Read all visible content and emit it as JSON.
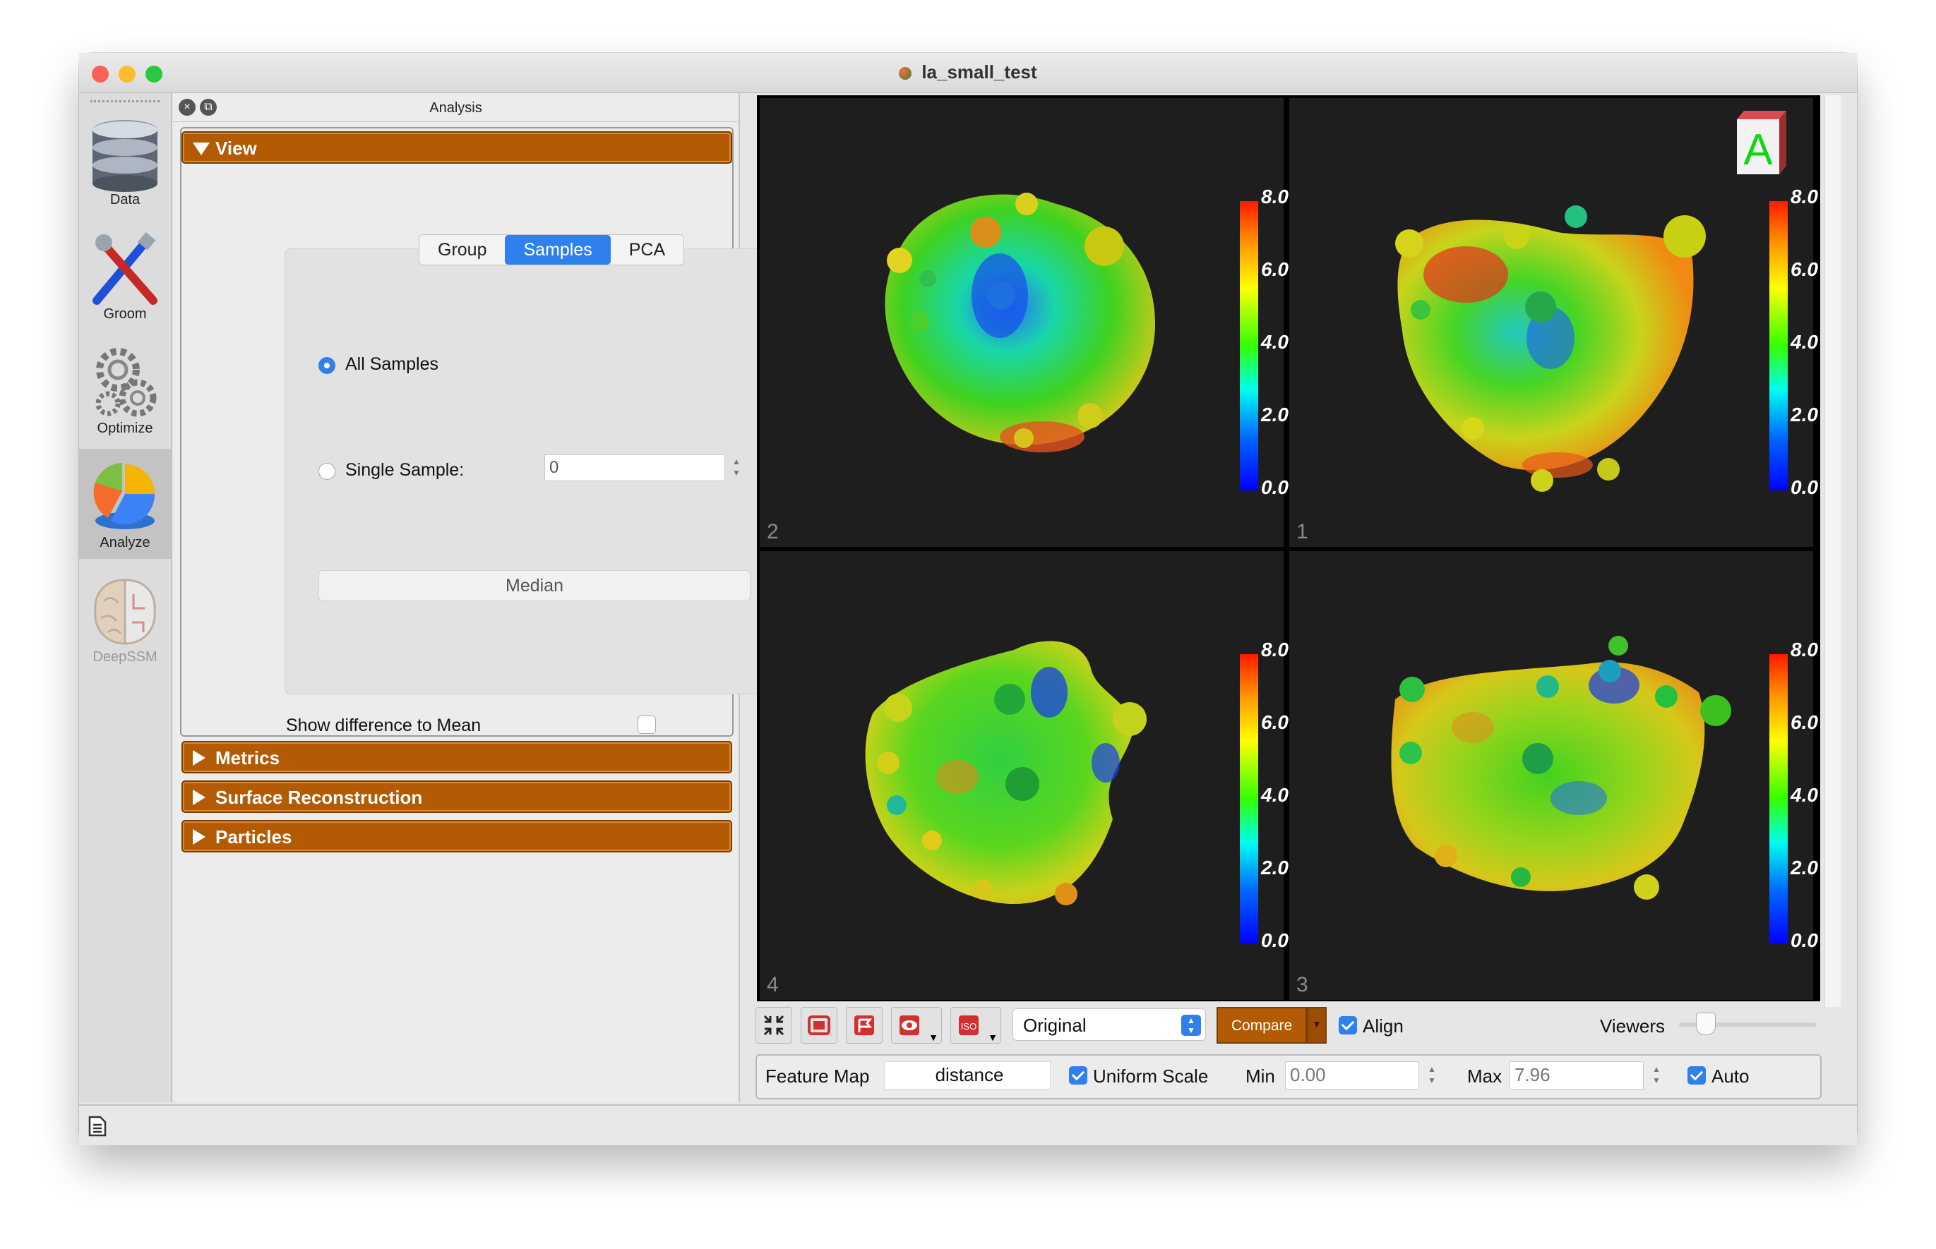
{
  "window": {
    "title": "la_small_test",
    "traffic_lights": {
      "close": "#fe5f57",
      "minimize": "#febc2e",
      "zoom": "#28c840"
    }
  },
  "sidebar": {
    "items": [
      {
        "label": "Data",
        "icon": "database-icon"
      },
      {
        "label": "Groom",
        "icon": "tools-icon"
      },
      {
        "label": "Optimize",
        "icon": "gears-icon"
      },
      {
        "label": "Analyze",
        "icon": "pie-chart-icon",
        "active": true
      },
      {
        "label": "DeepSSM",
        "icon": "brain-icon",
        "disabled": true
      }
    ]
  },
  "panel": {
    "title": "Analysis",
    "view_section": {
      "label": "View",
      "tabs": [
        "Group",
        "Samples",
        "PCA"
      ],
      "selected_tab": "Samples",
      "all_samples_label": "All Samples",
      "single_sample_label": "Single Sample:",
      "single_sample_value": "0",
      "median_button": "Median",
      "show_diff_label": "Show difference to Mean"
    },
    "collapsed_sections": [
      "Metrics",
      "Surface Reconstruction",
      "Particles"
    ]
  },
  "viewers": {
    "orientation_label": "A",
    "panes": [
      {
        "number": "2"
      },
      {
        "number": "1"
      },
      {
        "number": "4"
      },
      {
        "number": "3"
      }
    ],
    "colorbar_labels": [
      "8.0",
      "6.0",
      "4.0",
      "2.0",
      "0.0"
    ]
  },
  "toolbar": {
    "display_mode": "Original",
    "compare_label": "Compare",
    "align_label": "Align",
    "viewers_label": "Viewers",
    "align_checked": true
  },
  "feature_bar": {
    "feature_map_label": "Feature Map",
    "feature_map_value": "distance",
    "uniform_scale_label": "Uniform Scale",
    "min_label": "Min",
    "min_value": "0.00",
    "max_label": "Max",
    "max_value": "7.96",
    "auto_label": "Auto"
  }
}
